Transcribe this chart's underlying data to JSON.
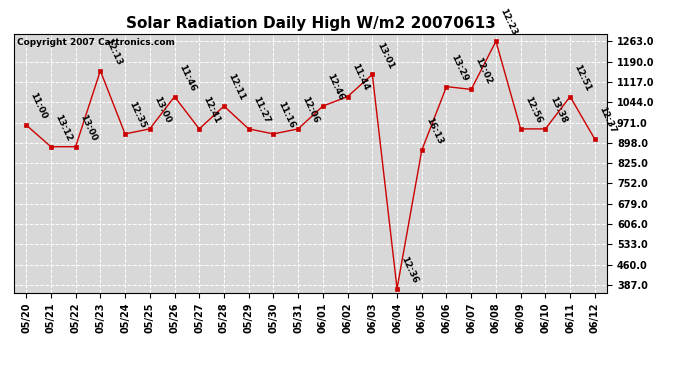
{
  "title": "Solar Radiation Daily High W/m2 20070613",
  "copyright": "Copyright 2007 Cartronics.com",
  "dates": [
    "05/20",
    "05/21",
    "05/22",
    "05/23",
    "05/24",
    "05/25",
    "05/26",
    "05/27",
    "05/28",
    "05/29",
    "05/30",
    "05/31",
    "06/01",
    "06/02",
    "06/03",
    "06/04",
    "06/05",
    "06/06",
    "06/07",
    "06/08",
    "06/09",
    "06/10",
    "06/11",
    "06/12"
  ],
  "values": [
    962,
    884,
    884,
    1157,
    930,
    948,
    1064,
    948,
    1030,
    948,
    930,
    948,
    1030,
    1064,
    1144,
    374,
    871,
    1100,
    1090,
    1263,
    948,
    948,
    1064,
    911
  ],
  "time_labels": [
    "11:00",
    "13:12",
    "13:00",
    "12:13",
    "12:35",
    "13:00",
    "11:46",
    "12:41",
    "12:11",
    "11:27",
    "11:16",
    "12:06",
    "12:46",
    "11:44",
    "13:01",
    "12:36",
    "16:13",
    "13:29",
    "12:02",
    "12:23",
    "12:56",
    "13:38",
    "12:51",
    "12:37"
  ],
  "ylim": [
    360,
    1290
  ],
  "yticks": [
    387.0,
    460.0,
    533.0,
    606.0,
    679.0,
    752.0,
    825.0,
    898.0,
    971.0,
    1044.0,
    1117.0,
    1190.0,
    1263.0
  ],
  "line_color": "#cc0000",
  "marker_color": "#cc0000",
  "bg_color": "#ffffff",
  "plot_bg_color": "#d8d8d8",
  "grid_color": "#ffffff",
  "title_fontsize": 11,
  "label_fontsize": 6.5,
  "tick_fontsize": 7,
  "copyright_fontsize": 6.5
}
